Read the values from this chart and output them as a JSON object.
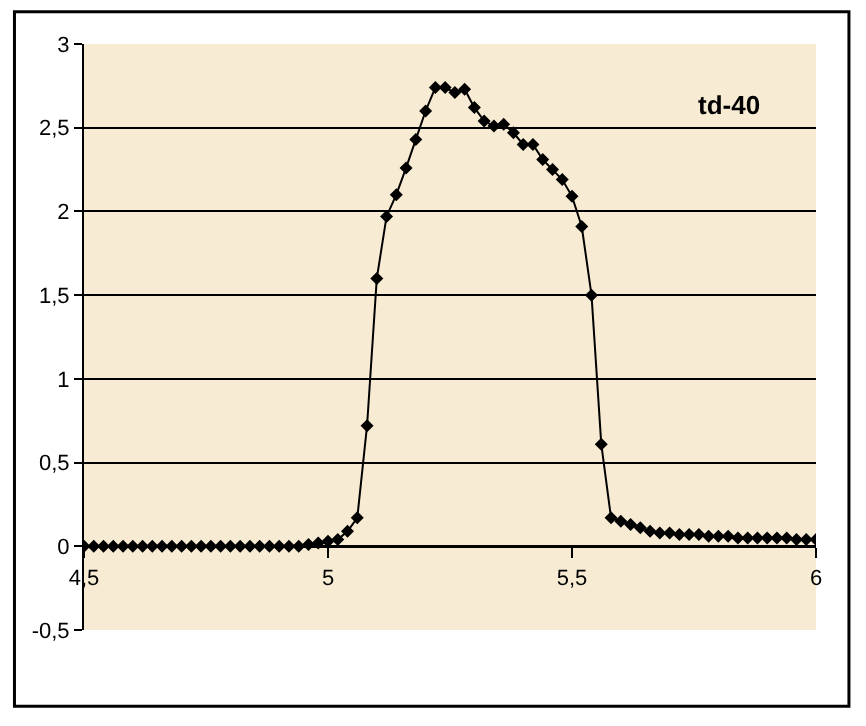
{
  "chart_data": {
    "type": "line",
    "marker": "diamond",
    "legend": false,
    "grid": "y",
    "x": [
      4.5,
      4.52,
      4.54,
      4.56,
      4.58,
      4.6,
      4.62,
      4.64,
      4.66,
      4.68,
      4.7,
      4.72,
      4.74,
      4.76,
      4.78,
      4.8,
      4.82,
      4.84,
      4.86,
      4.88,
      4.9,
      4.92,
      4.94,
      4.96,
      4.98,
      5.0,
      5.02,
      5.04,
      5.06,
      5.08,
      5.1,
      5.12,
      5.14,
      5.16,
      5.18,
      5.2,
      5.22,
      5.24,
      5.26,
      5.28,
      5.3,
      5.32,
      5.34,
      5.36,
      5.38,
      5.4,
      5.42,
      5.44,
      5.46,
      5.48,
      5.5,
      5.52,
      5.54,
      5.56,
      5.58,
      5.6,
      5.62,
      5.64,
      5.66,
      5.68,
      5.7,
      5.72,
      5.74,
      5.76,
      5.78,
      5.8,
      5.82,
      5.84,
      5.86,
      5.88,
      5.9,
      5.92,
      5.94,
      5.96,
      5.98,
      6.0
    ],
    "series": [
      {
        "name": "td-40",
        "color": "#000000",
        "values": [
          0,
          0,
          0,
          0,
          0,
          0,
          0,
          0,
          0,
          0,
          0,
          0,
          0,
          0,
          0,
          0,
          0,
          0,
          0,
          0,
          0,
          0,
          0,
          0.01,
          0.02,
          0.03,
          0.04,
          0.09,
          0.17,
          0.72,
          1.6,
          1.97,
          2.1,
          2.26,
          2.43,
          2.6,
          2.74,
          2.74,
          2.71,
          2.73,
          2.62,
          2.54,
          2.51,
          2.52,
          2.47,
          2.4,
          2.4,
          2.31,
          2.25,
          2.19,
          2.09,
          1.91,
          1.5,
          0.61,
          0.17,
          0.15,
          0.13,
          0.11,
          0.09,
          0.08,
          0.08,
          0.07,
          0.07,
          0.07,
          0.06,
          0.06,
          0.06,
          0.05,
          0.05,
          0.05,
          0.05,
          0.05,
          0.05,
          0.04,
          0.04,
          0.04
        ]
      }
    ],
    "xlim": [
      4.5,
      6
    ],
    "xticks": [
      {
        "value": 4.5,
        "label": "4,5"
      },
      5,
      {
        "value": 5.5,
        "label": "5,5"
      },
      6
    ],
    "ylim": [
      -0.5,
      3
    ],
    "yticks": [
      {
        "value": -0.5,
        "label": "-0,5"
      },
      0,
      {
        "value": 0.5,
        "label": "0,5"
      },
      1,
      {
        "value": 1.5,
        "label": "1,5"
      },
      2,
      {
        "value": 2.5,
        "label": "2,5"
      },
      3
    ]
  }
}
